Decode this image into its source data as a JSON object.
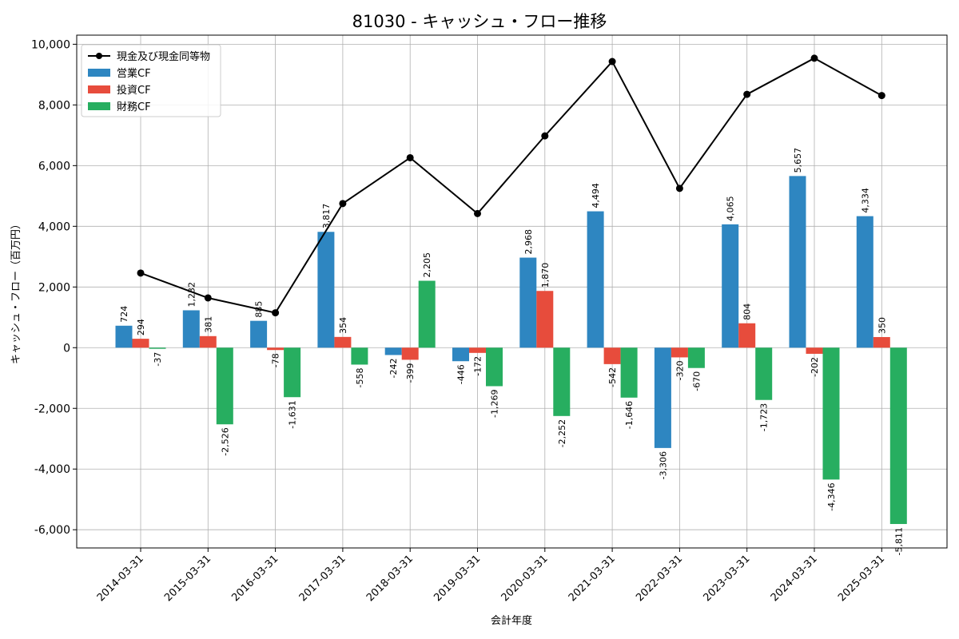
{
  "chart_data": {
    "type": "bar",
    "title": "81030 - キャッシュ・フロー推移",
    "xlabel": "会計年度",
    "ylabel": "キャッシュ・フロー（百万円）",
    "ylim": [
      -6600,
      10300
    ],
    "yticks": [
      -6000,
      -4000,
      -2000,
      0,
      2000,
      4000,
      6000,
      8000,
      10000
    ],
    "ytick_labels": [
      "-6,000",
      "-4,000",
      "-2,000",
      "0",
      "2,000",
      "4,000",
      "6,000",
      "8,000",
      "10,000"
    ],
    "grid": true,
    "legend_position": "top-left",
    "categories": [
      "2014-03-31",
      "2015-03-31",
      "2016-03-31",
      "2017-03-31",
      "2018-03-31",
      "2019-03-31",
      "2020-03-31",
      "2021-03-31",
      "2022-03-31",
      "2023-03-31",
      "2024-03-31",
      "2025-03-31"
    ],
    "series": [
      {
        "name": "営業CF",
        "kind": "bar",
        "color": "#2e86c1",
        "values": [
          724,
          1232,
          885,
          3817,
          -242,
          -446,
          2968,
          4494,
          -3306,
          4065,
          5657,
          4334
        ],
        "labels": [
          "724",
          "1,232",
          "885",
          "3,817",
          "-242",
          "-446",
          "2,968",
          "4,494",
          "-3,306",
          "4,065",
          "5,657",
          "4,334"
        ]
      },
      {
        "name": "投資CF",
        "kind": "bar",
        "color": "#e74c3c",
        "values": [
          294,
          381,
          -78,
          354,
          -399,
          -172,
          1870,
          -542,
          -320,
          804,
          -202,
          350
        ],
        "labels": [
          "294",
          "381",
          "-78",
          "354",
          "-399",
          "-172",
          "1,870",
          "-542",
          "-320",
          "804",
          "-202",
          "350"
        ]
      },
      {
        "name": "財務CF",
        "kind": "bar",
        "color": "#27ae60",
        "values": [
          -37,
          -2526,
          -1631,
          -558,
          2205,
          -1269,
          -2252,
          -1646,
          -670,
          -1723,
          -4346,
          -5811
        ],
        "labels": [
          "-37",
          "-2,526",
          "-1,631",
          "-558",
          "2,205",
          "-1,269",
          "-2,252",
          "-1,646",
          "-670",
          "-1,723",
          "-4,346",
          "-5,811"
        ]
      },
      {
        "name": "現金及び現金同等物",
        "kind": "line",
        "color": "#000000",
        "values": [
          2460,
          1640,
          1150,
          4750,
          6260,
          4420,
          6980,
          9430,
          5250,
          8350,
          9540,
          8310
        ]
      }
    ]
  }
}
